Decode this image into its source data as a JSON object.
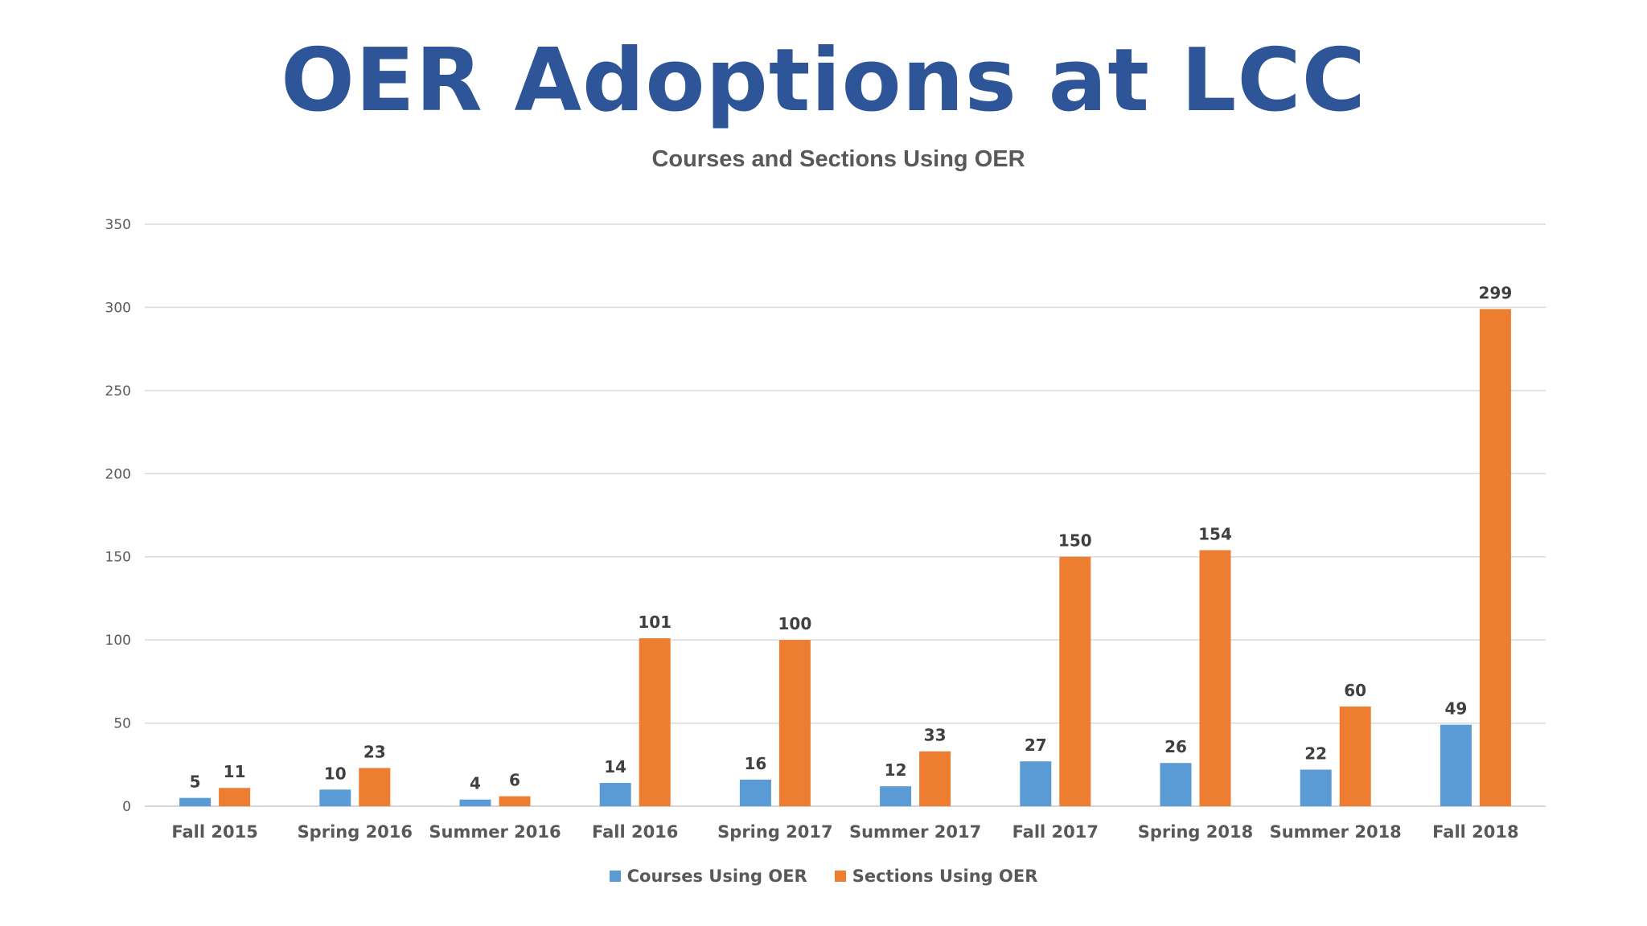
{
  "page": {
    "title": "OER Adoptions at LCC",
    "title_color": "#2E5597"
  },
  "chart_data": {
    "type": "bar",
    "title": "Courses and Sections Using OER",
    "categories": [
      "Fall 2015",
      "Spring 2016",
      "Summer 2016",
      "Fall 2016",
      "Spring 2017",
      "Summer 2017",
      "Fall 2017",
      "Spring 2018",
      "Summer 2018",
      "Fall 2018"
    ],
    "series": [
      {
        "name": "Courses Using OER",
        "color": "#5B9BD5",
        "values": [
          5,
          10,
          4,
          14,
          16,
          12,
          27,
          26,
          22,
          49
        ]
      },
      {
        "name": "Sections Using OER",
        "color": "#ED7D31",
        "values": [
          11,
          23,
          6,
          101,
          100,
          33,
          150,
          154,
          60,
          299
        ]
      }
    ],
    "ylim": [
      0,
      350
    ],
    "yticks": [
      0,
      50,
      100,
      150,
      200,
      250,
      300,
      350
    ],
    "grid": true,
    "legend_position": "bottom",
    "data_labels": true
  }
}
